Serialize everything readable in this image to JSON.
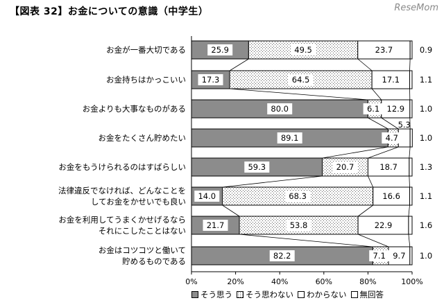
{
  "title": "【図表 32】お金についての意識（中学生）",
  "watermark": "ReseMom",
  "colors": {
    "agree": "#8c8c8c",
    "disagree": "#ffffff",
    "unknown": "#ffffff",
    "noanswer": "#ffffff",
    "border": "#000000"
  },
  "legend": [
    {
      "label": "そう思う",
      "key": "agree"
    },
    {
      "label": "そう思わない",
      "key": "disagree"
    },
    {
      "label": "わからない",
      "key": "unknown"
    },
    {
      "label": "無回答",
      "key": "noanswer"
    }
  ],
  "chart_data": {
    "type": "bar",
    "orientation": "horizontal",
    "stacked": "100%",
    "categories": [
      [
        "お金が一番大切である"
      ],
      [
        "お金持ちはかっこいい"
      ],
      [
        "お金よりも大事なものがある"
      ],
      [
        "お金をたくさん貯めたい"
      ],
      [
        "お金をもうけられるのはすばらしい"
      ],
      [
        "法律違反でなければ、どんなことを",
        "してお金をかせいでも良い"
      ],
      [
        "お金を利用してうまくかせげるなら",
        "それにこしたことはない"
      ],
      [
        "お金はコツコツと働いて",
        "貯めるものである"
      ]
    ],
    "series": [
      {
        "name": "そう思う",
        "values": [
          25.9,
          17.3,
          80.0,
          89.1,
          59.3,
          14.0,
          21.7,
          82.2
        ]
      },
      {
        "name": "そう思わない",
        "values": [
          49.5,
          64.5,
          6.1,
          4.7,
          20.7,
          68.3,
          53.8,
          7.1
        ]
      },
      {
        "name": "わからない",
        "values": [
          23.7,
          17.1,
          12.9,
          5.3,
          18.7,
          16.6,
          22.9,
          9.7
        ]
      },
      {
        "name": "無回答",
        "values": [
          0.9,
          1.1,
          1.0,
          1.0,
          1.3,
          1.1,
          1.6,
          1.0
        ]
      }
    ],
    "value_labels": [
      [
        "25.9",
        "49.5",
        "23.7",
        "0.9"
      ],
      [
        "17.3",
        "64.5",
        "17.1",
        "1.1"
      ],
      [
        "80.0",
        "6.1",
        "12.9",
        "1.0"
      ],
      [
        "89.1",
        "4.7",
        "5.3",
        "1.0"
      ],
      [
        "59.3",
        "20.7",
        "18.7",
        "1.3"
      ],
      [
        "14.0",
        "68.3",
        "16.6",
        "1.1"
      ],
      [
        "21.7",
        "53.8",
        "22.9",
        "1.6"
      ],
      [
        "82.2",
        "7.1",
        "9.7",
        "1.0"
      ]
    ],
    "x_ticks": [
      "0%",
      "20%",
      "40%",
      "60%",
      "80%",
      "100%"
    ],
    "xlim": [
      0,
      100
    ],
    "legend_position": "bottom"
  }
}
